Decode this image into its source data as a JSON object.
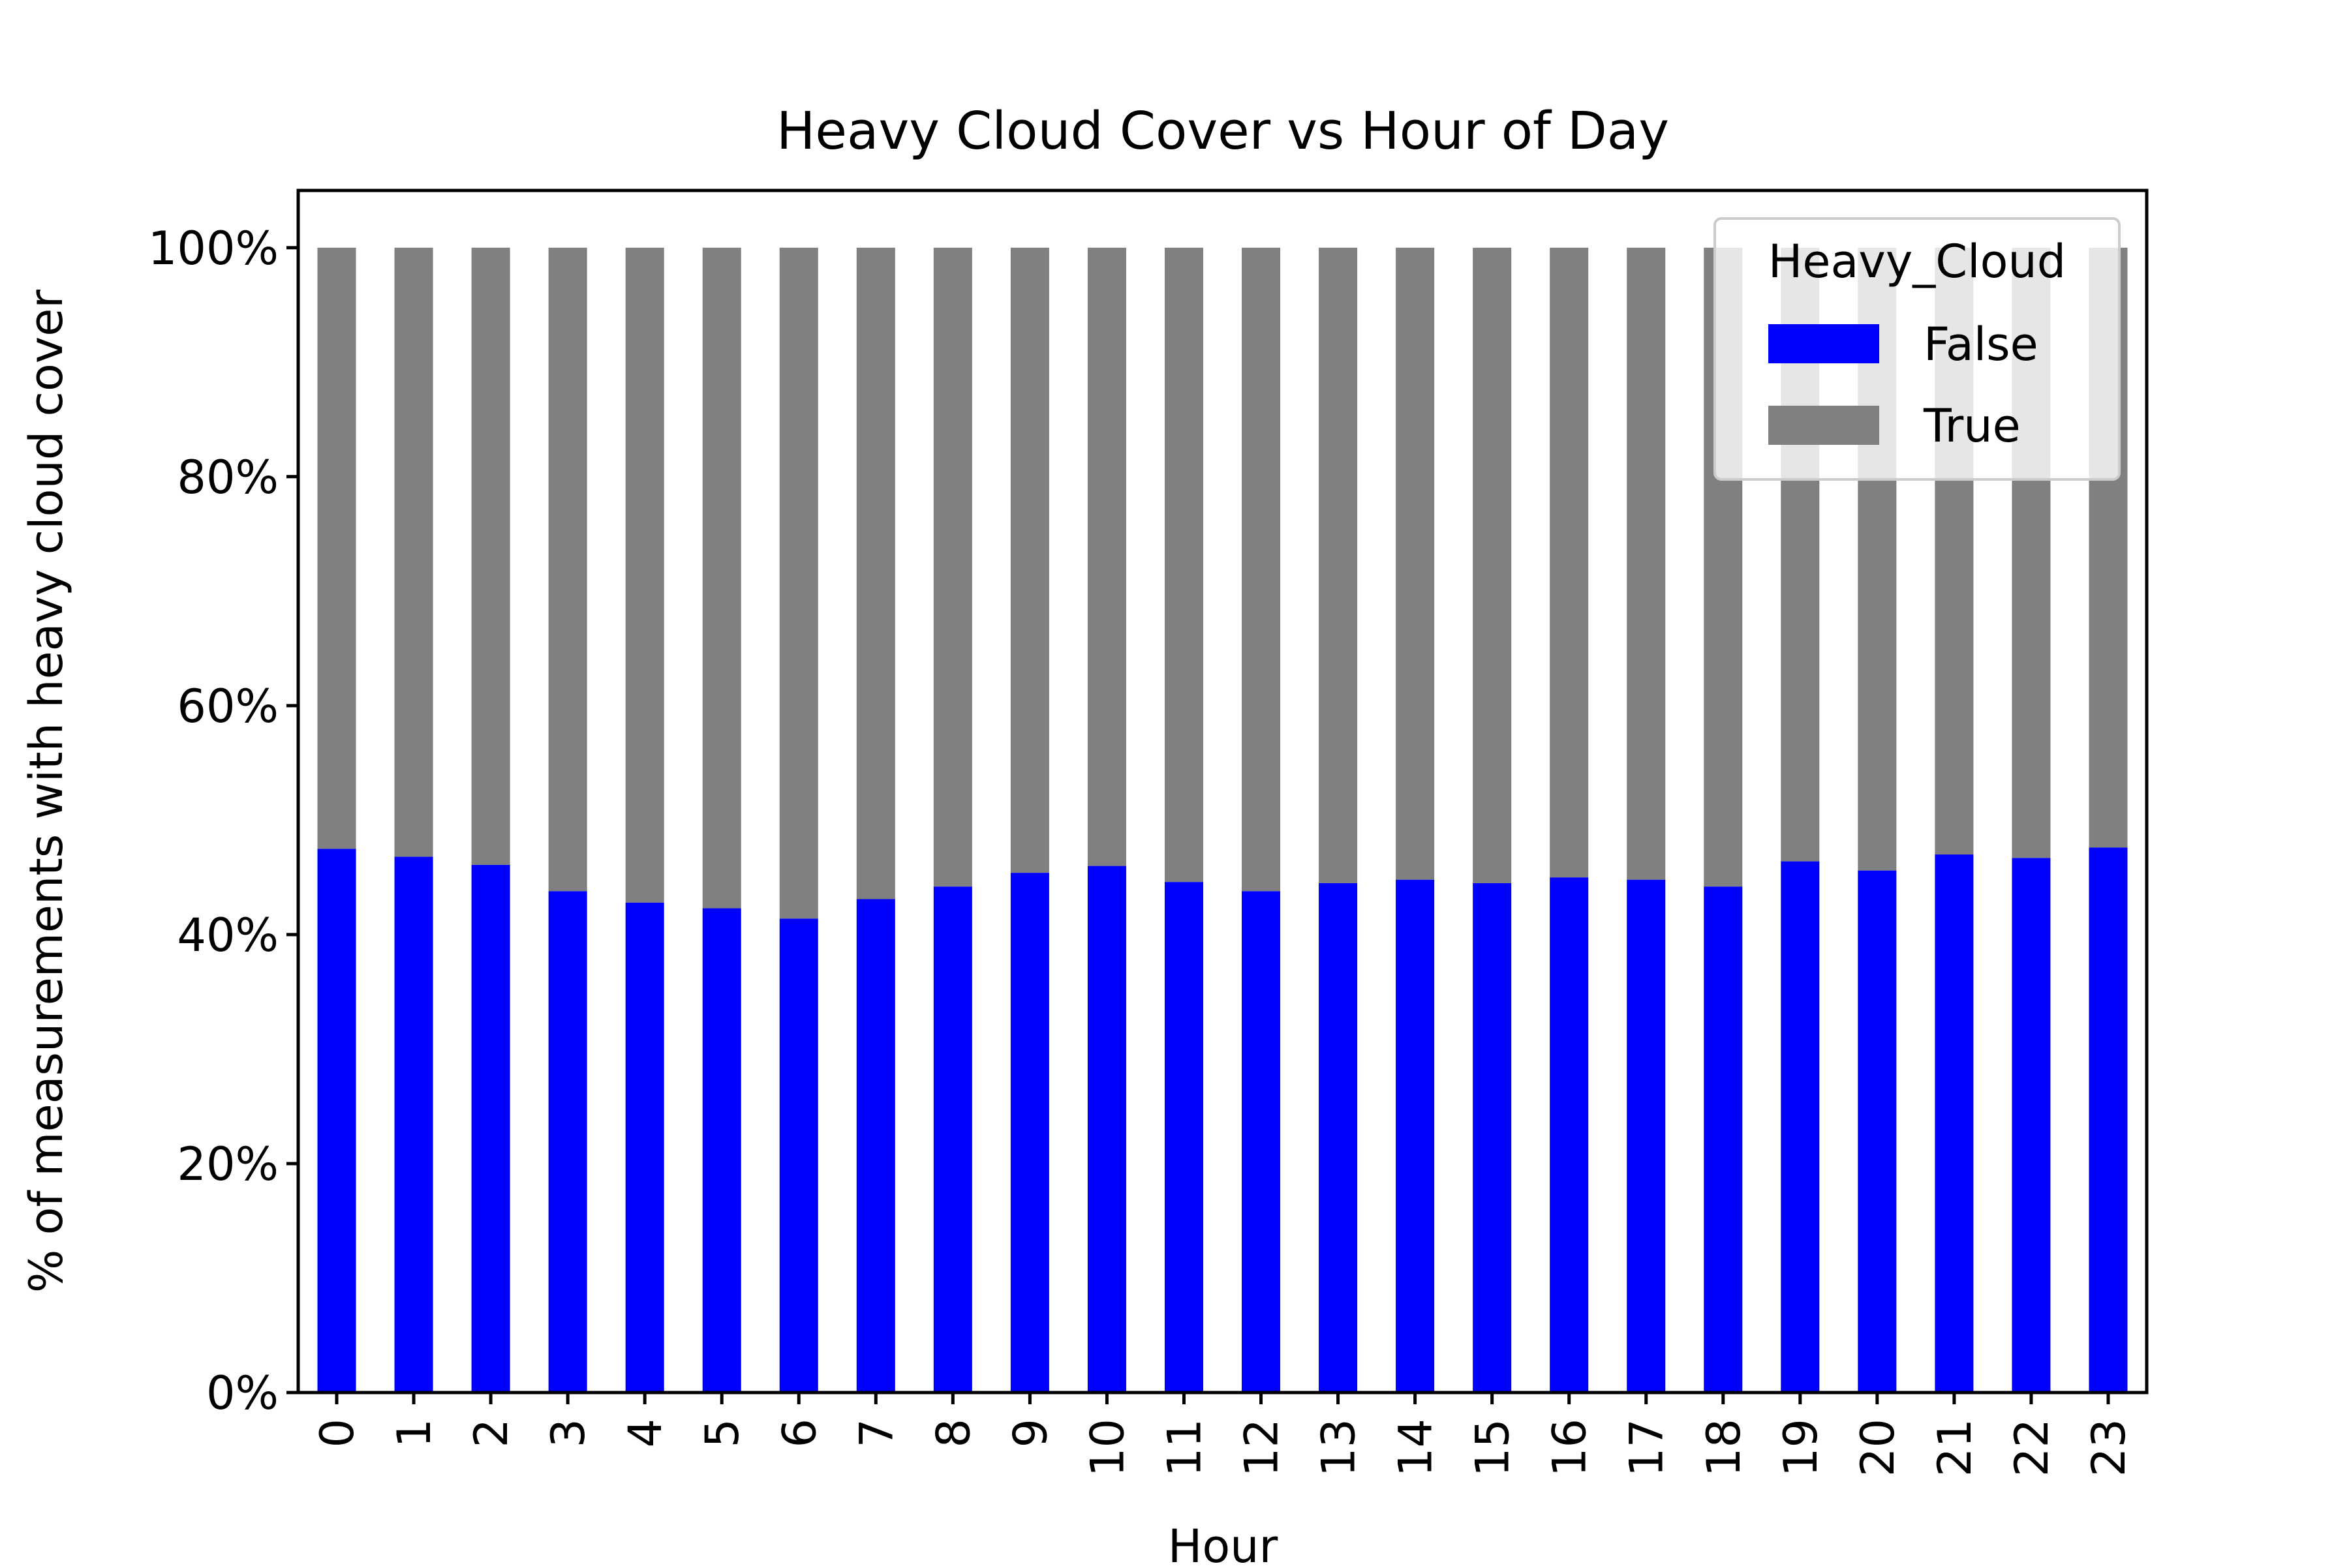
{
  "chart_data": {
    "type": "bar",
    "stacked": true,
    "title": "Heavy Cloud Cover vs Hour of Day",
    "xlabel": "Hour",
    "ylabel": "% of measurements with heavy cloud cover",
    "categories": [
      "0",
      "1",
      "2",
      "3",
      "4",
      "5",
      "6",
      "7",
      "8",
      "9",
      "10",
      "11",
      "12",
      "13",
      "14",
      "15",
      "16",
      "17",
      "18",
      "19",
      "20",
      "21",
      "22",
      "23"
    ],
    "series": [
      {
        "name": "False",
        "color": "#0000ff",
        "values": [
          47.5,
          46.8,
          46.1,
          43.8,
          42.8,
          42.3,
          41.4,
          43.1,
          44.2,
          45.4,
          46.0,
          44.6,
          43.8,
          44.5,
          44.8,
          44.5,
          45.0,
          44.8,
          44.2,
          46.4,
          45.6,
          47.0,
          46.7,
          47.6
        ]
      },
      {
        "name": "True",
        "color": "#808080",
        "values": [
          52.5,
          53.2,
          53.9,
          56.2,
          57.2,
          57.7,
          58.6,
          56.9,
          55.8,
          54.6,
          54.0,
          55.4,
          56.2,
          55.5,
          55.2,
          55.5,
          55.0,
          55.2,
          55.8,
          53.6,
          54.4,
          53.0,
          53.3,
          52.4
        ]
      }
    ],
    "ylim": [
      0,
      105
    ],
    "yticks": [
      "0%",
      "20%",
      "40%",
      "60%",
      "80%",
      "100%"
    ],
    "ytick_values": [
      0,
      20,
      40,
      60,
      80,
      100
    ],
    "legend": {
      "title": "Heavy_Cloud",
      "placement": "top-right"
    },
    "grid": false
  }
}
